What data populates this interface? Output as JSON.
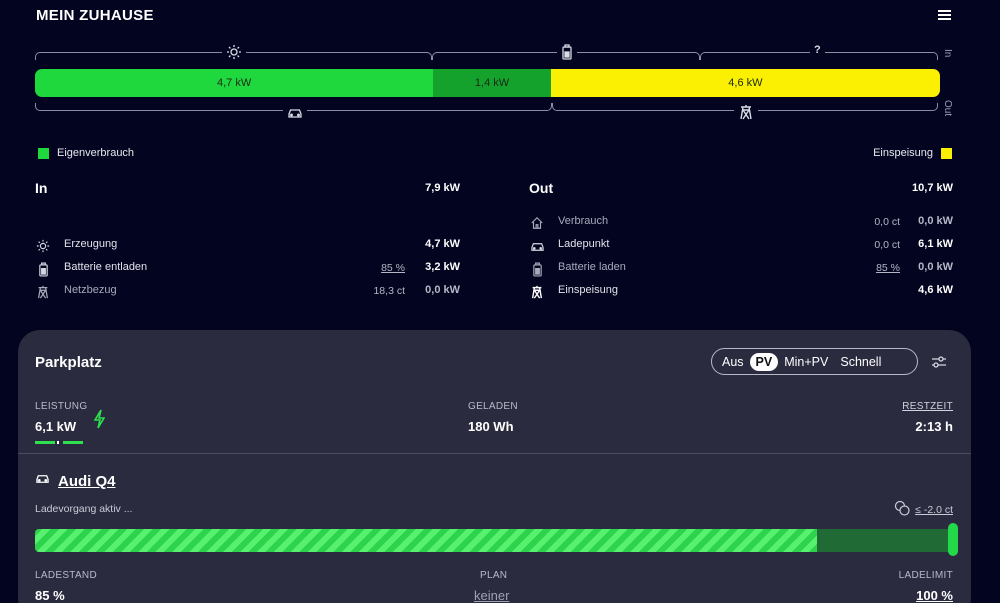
{
  "header": {
    "title": "MEIN ZUHAUSE",
    "menu_icon": "hamburger-icon"
  },
  "flow": {
    "segments": [
      {
        "label": "4,7 kW",
        "color": "#1fd83d",
        "share": 0.44
      },
      {
        "label": "1,4 kW",
        "color": "#14a22d",
        "share": 0.13
      },
      {
        "label": "4,6 kW",
        "color": "#fbf001",
        "share": 0.43
      }
    ],
    "top_icons": [
      "sun-icon",
      "battery-icon"
    ],
    "top_unknown": "?",
    "bottom_icons": [
      "car-icon",
      "grid-tower-icon"
    ],
    "in_side_label": "In",
    "out_side_label": "Out"
  },
  "legend": {
    "self_consumption": {
      "label": "Eigenverbrauch",
      "color": "#1fd83d"
    },
    "feed_in": {
      "label": "Einspeisung",
      "color": "#fbf001"
    }
  },
  "in_summary": {
    "title": "In",
    "total": "7,9 kW",
    "rows": [
      {
        "icon": "sun-icon",
        "label": "Erzeugung",
        "sub": "",
        "value": "4,7 kW"
      },
      {
        "icon": "battery-icon",
        "label": "Batterie entladen",
        "sub": "85 %",
        "value": "3,2 kW"
      },
      {
        "icon": "grid-tower-icon",
        "label": "Netzbezug",
        "sub": "18,3 ct",
        "value": "0,0 kW"
      }
    ]
  },
  "out_summary": {
    "title": "Out",
    "total": "10,7 kW",
    "rows": [
      {
        "icon": "house-icon",
        "label": "Verbrauch",
        "sub": "0,0 ct",
        "value": "0,0 kW"
      },
      {
        "icon": "car-icon",
        "label": "Ladepunkt",
        "sub": "0,0 ct",
        "value": "6,1 kW"
      },
      {
        "icon": "battery-icon",
        "label": "Batterie laden",
        "sub": "85 %",
        "value": "0,0 kW"
      },
      {
        "icon": "grid-tower-icon",
        "label": "Einspeisung",
        "sub": "",
        "value": "4,6 kW"
      }
    ]
  },
  "loadpoint": {
    "title": "Parkplatz",
    "modes": [
      "Aus",
      "PV",
      "Min+PV",
      "Schnell"
    ],
    "active_mode": "PV",
    "power_label": "LEISTUNG",
    "power_value": "6,1 kW",
    "charged_label": "GELADEN",
    "charged_value": "180 Wh",
    "remaining_label": "RESTZEIT",
    "remaining_value": "2:13 h",
    "vehicle": "Audi Q4",
    "status": "Ladevorgang aktiv ...",
    "price_limit": "≤ -2.0 ct",
    "soc": 0.855,
    "soc_label": "LADESTAND",
    "soc_value": "85 %",
    "plan_label": "PLAN",
    "plan_value": "keiner",
    "limit_label": "LADELIMIT",
    "limit_value": "100 %"
  }
}
